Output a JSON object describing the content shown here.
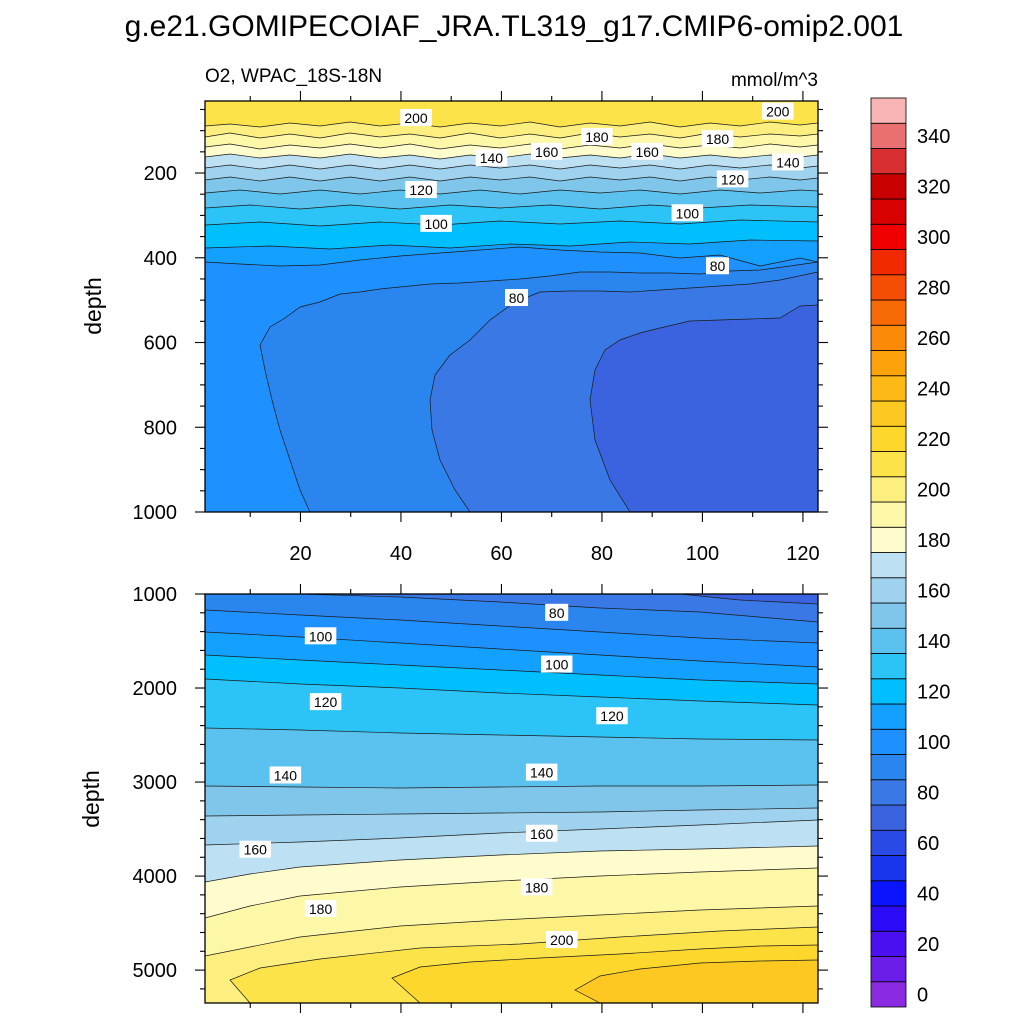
{
  "title": "g.e21.GOMIPECOIAF_JRA.TL319_g17.CMIP6-omip2.001",
  "chart_data": [
    {
      "type": "contour",
      "panel": "upper",
      "left_label": "O2, WPAC_18S-18N",
      "right_label": "mmol/m^3",
      "ylabel": "depth",
      "xlabel": "",
      "xlim": [
        1,
        123
      ],
      "ylim": [
        1000,
        30
      ],
      "y_reversed": true,
      "x_ticks": [
        "20",
        "40",
        "60",
        "80",
        "100",
        "120"
      ],
      "y_ticks": [
        "200",
        "400",
        "600",
        "800",
        "1000"
      ],
      "contour_labels": [
        {
          "text": "200",
          "x": 43,
          "y": 70
        },
        {
          "text": "180",
          "x": 79,
          "y": 115
        },
        {
          "text": "160",
          "x": 69,
          "y": 150
        },
        {
          "text": "160",
          "x": 89,
          "y": 150
        },
        {
          "text": "180",
          "x": 103,
          "y": 120
        },
        {
          "text": "200",
          "x": 115,
          "y": 55
        },
        {
          "text": "140",
          "x": 58,
          "y": 165
        },
        {
          "text": "140",
          "x": 117,
          "y": 175
        },
        {
          "text": "120",
          "x": 44,
          "y": 240
        },
        {
          "text": "120",
          "x": 106,
          "y": 215
        },
        {
          "text": "100",
          "x": 47,
          "y": 320
        },
        {
          "text": "100",
          "x": 97,
          "y": 295
        },
        {
          "text": "80",
          "x": 63,
          "y": 495
        },
        {
          "text": "80",
          "x": 103,
          "y": 420
        }
      ]
    },
    {
      "type": "contour",
      "panel": "lower",
      "ylabel": "depth",
      "xlabel": "",
      "xlim": [
        1,
        123
      ],
      "ylim": [
        5350,
        1000
      ],
      "y_reversed": true,
      "y_ticks": [
        "1000",
        "2000",
        "3000",
        "4000",
        "5000"
      ],
      "contour_labels": [
        {
          "text": "80",
          "x": 71,
          "y": 1200
        },
        {
          "text": "100",
          "x": 24,
          "y": 1450
        },
        {
          "text": "100",
          "x": 71,
          "y": 1750
        },
        {
          "text": "120",
          "x": 25,
          "y": 2150
        },
        {
          "text": "120",
          "x": 82,
          "y": 2300
        },
        {
          "text": "140",
          "x": 17,
          "y": 2930
        },
        {
          "text": "140",
          "x": 68,
          "y": 2900
        },
        {
          "text": "160",
          "x": 11,
          "y": 3720
        },
        {
          "text": "160",
          "x": 68,
          "y": 3550
        },
        {
          "text": "180",
          "x": 24,
          "y": 4350
        },
        {
          "text": "180",
          "x": 67,
          "y": 4120
        },
        {
          "text": "200",
          "x": 72,
          "y": 4680
        }
      ]
    }
  ],
  "colorbar": {
    "tick_labels": [
      "0",
      "20",
      "40",
      "60",
      "80",
      "100",
      "120",
      "140",
      "160",
      "180",
      "200",
      "220",
      "240",
      "260",
      "280",
      "300",
      "320",
      "340"
    ],
    "levels": [
      0,
      10,
      20,
      30,
      40,
      50,
      60,
      70,
      80,
      90,
      100,
      110,
      120,
      130,
      140,
      150,
      160,
      170,
      180,
      190,
      200,
      210,
      220,
      230,
      240,
      250,
      260,
      270,
      280,
      290,
      300,
      310,
      320,
      330,
      340,
      350
    ],
    "colors": [
      "#8a2be2",
      "#6a1ee8",
      "#4a10f0",
      "#2c0cf8",
      "#0a14ff",
      "#1a35ee",
      "#2a4ae6",
      "#3b63e0",
      "#3a78e6",
      "#2a86ee",
      "#1e90ff",
      "#14a0ff",
      "#00bfff",
      "#2cc4f6",
      "#5bc2ef",
      "#7fc6ea",
      "#9fd2ee",
      "#bde0f2",
      "#fefccc",
      "#fdf7a8",
      "#fcef80",
      "#fde34a",
      "#fed72c",
      "#fdc821",
      "#fdb915",
      "#fca30c",
      "#fb8a08",
      "#f86a05",
      "#f54d03",
      "#f22a00",
      "#f00000",
      "#d80000",
      "#c80000",
      "#d83030",
      "#e87070",
      "#f8b4b4"
    ]
  }
}
